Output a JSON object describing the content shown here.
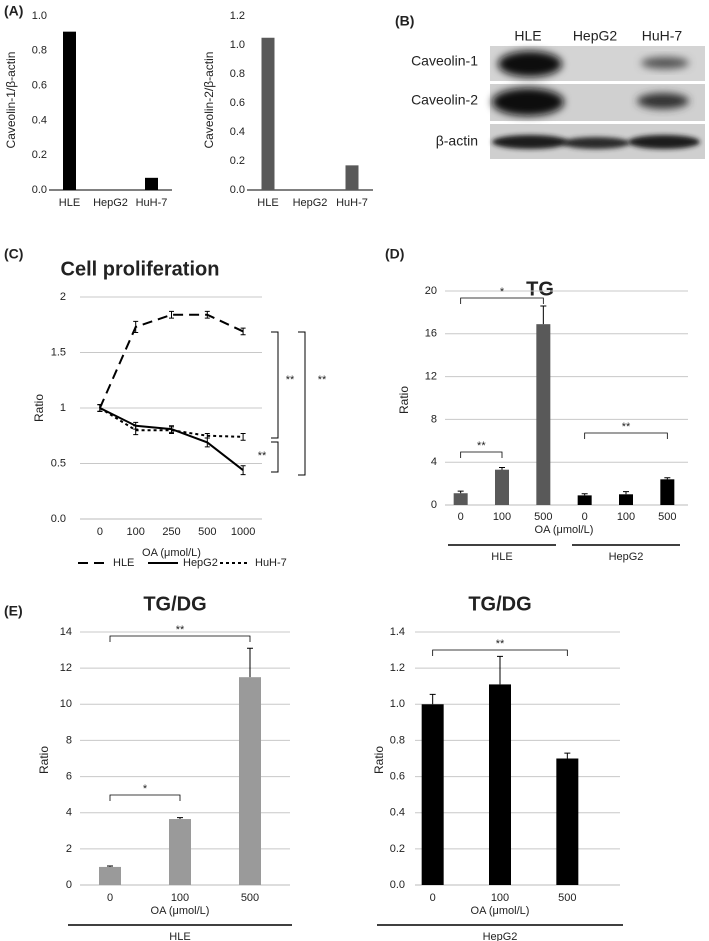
{
  "panel_labels": [
    "(A)",
    "(B)",
    "(C)",
    "(D)",
    "(E)"
  ],
  "blot": {
    "columns": [
      "HLE",
      "HepG2",
      "HuH-7"
    ],
    "rows": [
      "Caveolin-1",
      "Caveolin-2",
      "β-actin"
    ]
  },
  "chart_data": [
    {
      "type": "bar",
      "ylabel": "Caveolin-1/β-actin",
      "categories": [
        "HLE",
        "HepG2",
        "HuH-7"
      ],
      "values": [
        0.91,
        0,
        0.07
      ],
      "color": "#000000",
      "ylim": [
        0,
        1
      ],
      "yticks": [
        {
          "value": 0,
          "label": "0.0"
        },
        0.2,
        0.4,
        0.6,
        0.8,
        {
          "value": 1,
          "label": "1.0"
        }
      ],
      "grid": false
    },
    {
      "type": "bar",
      "ylabel": "Caveolin-2/β-actin",
      "categories": [
        "HLE",
        "HepG2",
        "HuH-7"
      ],
      "values": [
        1.05,
        0,
        0.17
      ],
      "color": "#595959",
      "ylim": [
        0,
        1.2
      ],
      "yticks": [
        {
          "value": 0,
          "label": "0.0"
        },
        0.2,
        0.4,
        0.6,
        0.8,
        {
          "value": 1,
          "label": "1.0"
        },
        1.2
      ],
      "grid": false
    },
    {
      "type": "line",
      "title": "Cell proliferation",
      "xlabel": "OA (μmol/L)",
      "ylabel": "Ratio",
      "categories": [
        "0",
        "100",
        "250",
        "500",
        "1000"
      ],
      "series": [
        {
          "name": "HLE",
          "color": "#000000",
          "dash": "dashed",
          "values": [
            1,
            1.73,
            1.84,
            1.84,
            1.69
          ],
          "errors": [
            0.03,
            0.05,
            0.03,
            0.03,
            0.03
          ]
        },
        {
          "name": "HepG2",
          "color": "#000000",
          "dash": "solid",
          "values": [
            1,
            0.84,
            0.81,
            0.69,
            0.44
          ],
          "errors": [
            0.03,
            0.03,
            0.03,
            0.04,
            0.04
          ]
        },
        {
          "name": "HuH-7",
          "color": "#000000",
          "dash": "dotted",
          "values": [
            1,
            0.8,
            0.8,
            0.75,
            0.74
          ],
          "errors": [
            0.03,
            0.04,
            0.03,
            0.02,
            0.03
          ]
        }
      ],
      "ylim": [
        0,
        2
      ],
      "yticks": [
        {
          "value": 0,
          "label": "0.0"
        },
        0.5,
        1,
        1.5,
        2
      ],
      "grid": true,
      "legend": "bottom",
      "annotations": [
        "**",
        "**",
        "**"
      ]
    },
    {
      "type": "bar",
      "title": "TG",
      "xlabel": "OA (μmol/L)",
      "ylabel": "Ratio",
      "categories": [
        "0",
        "100",
        "500",
        "0",
        "100",
        "500"
      ],
      "groups": [
        "HLE",
        "HepG2"
      ],
      "values": [
        1.1,
        3.3,
        16.9,
        0.9,
        1.0,
        2.4
      ],
      "errors": [
        0.2,
        0.2,
        1.7,
        0.15,
        0.25,
        0.15
      ],
      "colors": [
        "#595959",
        "#595959",
        "#595959",
        "#000000",
        "#000000",
        "#000000"
      ],
      "ylim": [
        0,
        20
      ],
      "yticks": [
        0,
        4,
        8,
        12,
        16,
        20
      ],
      "grid": true,
      "annotations": [
        "*",
        "**",
        "**"
      ]
    },
    {
      "type": "bar",
      "title": "TG/DG",
      "xlabel": "OA (μmol/L)",
      "ylabel": "Ratio",
      "categories": [
        "0",
        "100",
        "500"
      ],
      "groups": [
        "HLE"
      ],
      "values": [
        1.0,
        3.65,
        11.5
      ],
      "errors": [
        0.05,
        0.08,
        1.6
      ],
      "color": "#9a9a9a",
      "ylim": [
        0,
        14
      ],
      "yticks": [
        0,
        2,
        4,
        6,
        8,
        10,
        12,
        14
      ],
      "grid": true,
      "annotations": [
        "*",
        "**"
      ]
    },
    {
      "type": "bar",
      "title": "TG/DG",
      "xlabel": "OA (μmol/L)",
      "ylabel": "Ratio",
      "categories": [
        "0",
        "100",
        "500"
      ],
      "groups": [
        "HepG2"
      ],
      "values": [
        1.0,
        1.11,
        0.7
      ],
      "errors": [
        0.055,
        0.155,
        0.03
      ],
      "color": "#000000",
      "ylim": [
        0,
        1.4
      ],
      "yticks": [
        {
          "value": 0,
          "label": "0.0"
        },
        0.2,
        0.4,
        0.6,
        0.8,
        {
          "value": 1,
          "label": "1.0"
        },
        1.2,
        1.4
      ],
      "grid": true,
      "annotations": [
        "**"
      ]
    }
  ]
}
